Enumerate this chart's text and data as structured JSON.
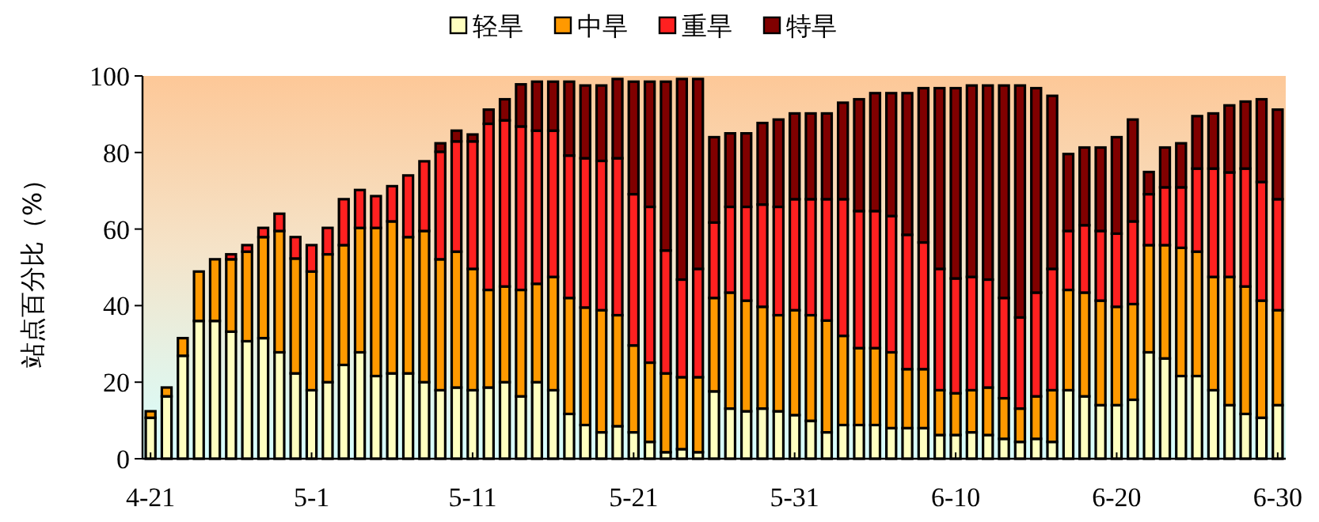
{
  "chart_data": {
    "type": "bar",
    "stacked": true,
    "legend": "top",
    "ylabel": "站点百分比（%）",
    "ylim": [
      0,
      100
    ],
    "yticks": [
      0,
      20,
      40,
      60,
      80,
      100
    ],
    "categories": [
      "4-21",
      null,
      null,
      null,
      null,
      null,
      null,
      null,
      null,
      null,
      "5-1",
      null,
      null,
      null,
      null,
      null,
      null,
      null,
      null,
      null,
      "5-11",
      null,
      null,
      null,
      null,
      null,
      null,
      null,
      null,
      null,
      "5-21",
      null,
      null,
      null,
      null,
      null,
      null,
      null,
      null,
      null,
      "5-31",
      null,
      null,
      null,
      null,
      null,
      null,
      null,
      null,
      null,
      "6-10",
      null,
      null,
      null,
      null,
      null,
      null,
      null,
      null,
      null,
      "6-20",
      null,
      null,
      null,
      null,
      null,
      null,
      null,
      null,
      null,
      "6-30"
    ],
    "series": [
      {
        "name": "轻旱",
        "color": "#ffffc0",
        "values": [
          10.7,
          16.3,
          26.9,
          36.0,
          36.0,
          33.2,
          30.7,
          31.5,
          27.8,
          22.3,
          17.9,
          20.0,
          24.5,
          27.8,
          21.6,
          22.3,
          22.3,
          20.0,
          17.9,
          18.6,
          17.9,
          18.6,
          20.0,
          16.3,
          20.0,
          17.9,
          11.7,
          8.8,
          6.9,
          8.5,
          6.9,
          4.4,
          1.7,
          2.5,
          1.7,
          17.6,
          13.1,
          12.4,
          13.1,
          12.4,
          11.4,
          9.9,
          6.9,
          8.8,
          8.8,
          8.8,
          8.0,
          8.0,
          8.0,
          6.2,
          6.2,
          6.9,
          6.2,
          5.2,
          4.4,
          5.2,
          4.4,
          17.9,
          16.3,
          14.0,
          14.0,
          15.4,
          27.8,
          26.2,
          21.6,
          21.6,
          17.9,
          14.0,
          11.7,
          10.7,
          14.0
        ]
      },
      {
        "name": "中旱",
        "color": "#ff9900",
        "values": [
          1.7,
          2.3,
          4.6,
          12.9,
          16.1,
          18.9,
          23.4,
          26.4,
          31.7,
          30.0,
          31.0,
          33.4,
          31.3,
          32.5,
          38.7,
          39.7,
          35.6,
          39.5,
          34.2,
          35.5,
          31.7,
          25.5,
          25.0,
          27.8,
          25.7,
          29.6,
          30.3,
          30.7,
          31.9,
          29.0,
          22.7,
          20.7,
          20.6,
          18.8,
          19.6,
          24.4,
          30.3,
          28.9,
          26.6,
          25.1,
          27.4,
          27.6,
          29.2,
          23.3,
          20.1,
          20.1,
          19.8,
          15.4,
          15.4,
          11.7,
          10.9,
          11.0,
          12.4,
          10.6,
          8.7,
          11.1,
          13.5,
          26.2,
          27.1,
          27.3,
          25.7,
          25.0,
          28.0,
          29.6,
          33.5,
          32.5,
          29.6,
          33.5,
          33.3,
          30.6,
          24.8
        ]
      },
      {
        "name": "重旱",
        "color": "#ff2020",
        "values": [
          0,
          0,
          0,
          0,
          0,
          1.3,
          1.7,
          2.4,
          4.5,
          5.6,
          6.9,
          6.9,
          12.0,
          9.9,
          8.3,
          9.2,
          16.1,
          18.2,
          28.1,
          28.8,
          33.3,
          43.4,
          43.4,
          42.7,
          40.0,
          38.2,
          37.2,
          39.0,
          39.0,
          41.0,
          39.5,
          40.7,
          32.1,
          25.5,
          28.3,
          19.7,
          22.4,
          24.5,
          26.7,
          28.3,
          29.0,
          30.3,
          31.7,
          35.7,
          35.8,
          35.8,
          35.6,
          35.1,
          33.1,
          31.7,
          30.0,
          29.6,
          28.2,
          26.2,
          23.8,
          27.1,
          31.7,
          15.4,
          17.6,
          18.2,
          19.1,
          21.6,
          13.3,
          15.1,
          15.8,
          21.7,
          28.3,
          27.3,
          30.8,
          31.0,
          29.0
        ]
      },
      {
        "name": "特旱",
        "color": "#800000",
        "values": [
          0,
          0,
          0,
          0,
          0,
          0,
          0,
          0,
          0,
          0,
          0,
          0,
          0,
          0,
          0,
          0,
          0,
          0,
          2.2,
          2.8,
          1.8,
          3.7,
          5.5,
          11.0,
          12.8,
          12.8,
          19.3,
          19.0,
          19.7,
          20.7,
          29.4,
          32.7,
          44.1,
          52.4,
          49.6,
          22.3,
          19.2,
          19.2,
          21.3,
          22.8,
          22.4,
          22.4,
          22.4,
          25.2,
          29.2,
          30.8,
          32.1,
          37.0,
          40.3,
          47.2,
          49.7,
          50.0,
          50.7,
          55.5,
          60.6,
          53.4,
          45.2,
          20.1,
          20.3,
          21.8,
          25.2,
          26.6,
          5.8,
          10.4,
          11.5,
          13.7,
          14.4,
          17.5,
          17.5,
          21.6,
          23.4
        ]
      }
    ]
  }
}
